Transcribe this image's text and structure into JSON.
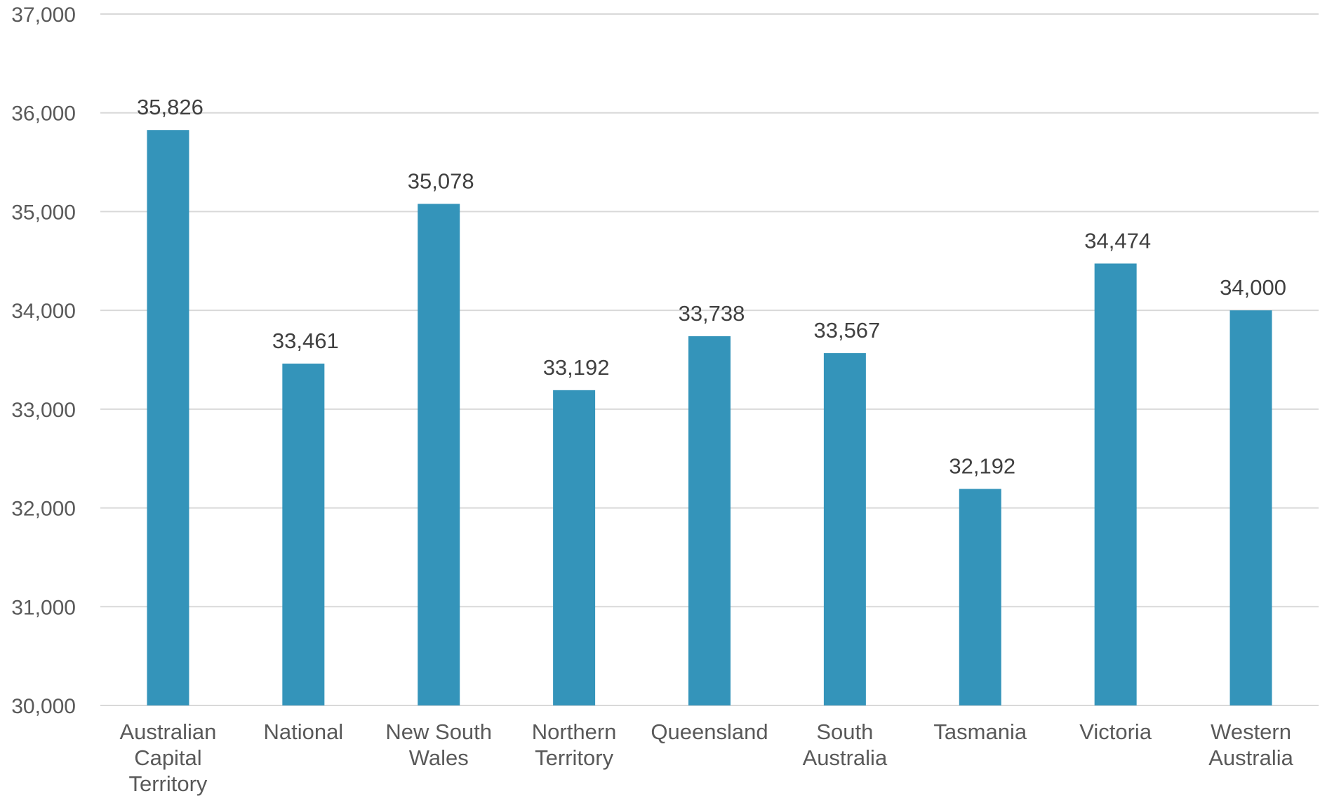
{
  "chart_data": {
    "type": "bar",
    "categories": [
      [
        "Australian",
        "Capital",
        "Territory"
      ],
      [
        "National"
      ],
      [
        "New South",
        "Wales"
      ],
      [
        "Northern",
        "Territory"
      ],
      [
        "Queensland"
      ],
      [
        "South",
        "Australia"
      ],
      [
        "Tasmania"
      ],
      [
        "Victoria"
      ],
      [
        "Western",
        "Australia"
      ]
    ],
    "values": [
      35826,
      33461,
      35078,
      33192,
      33738,
      33567,
      32192,
      34474,
      34000
    ],
    "value_labels": [
      "35,826",
      "33,461",
      "35,078",
      "33,192",
      "33,738",
      "33,567",
      "32,192",
      "34,474",
      "34,000"
    ],
    "ylim": [
      30000,
      37000
    ],
    "yticks": [
      30000,
      31000,
      32000,
      33000,
      34000,
      35000,
      36000,
      37000
    ],
    "ytick_labels": [
      "30,000",
      "31,000",
      "32,000",
      "33,000",
      "34,000",
      "35,000",
      "36,000",
      "37,000"
    ],
    "grid": true,
    "legend": "none",
    "bar_color": "#3494ba",
    "title": "",
    "xlabel": "",
    "ylabel": ""
  }
}
